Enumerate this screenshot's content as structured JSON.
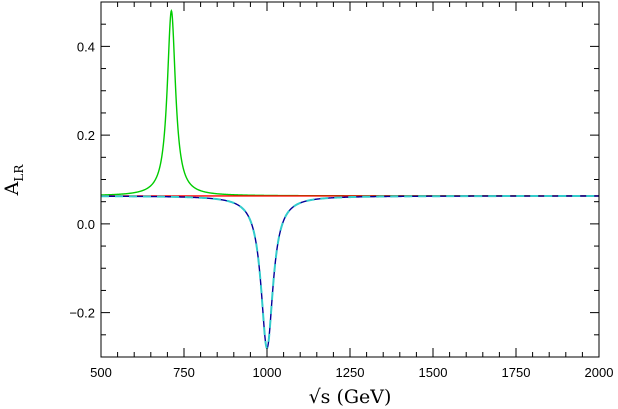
{
  "chart_data": {
    "type": "line",
    "xlabel": "√s (GeV)",
    "ylabel_main": "A",
    "ylabel_sub": "LR",
    "xlim": [
      500,
      2000
    ],
    "ylim": [
      -0.3,
      0.5
    ],
    "x_ticks": [
      500,
      750,
      1000,
      1250,
      1500,
      1750,
      2000
    ],
    "x_tick_labels": [
      "500",
      "750",
      "1000",
      "1250",
      "1500",
      "1750",
      "2000"
    ],
    "y_ticks": [
      -0.2,
      0.0,
      0.2,
      0.4
    ],
    "y_tick_labels": [
      "−0.2",
      "0.0",
      "0.2",
      "0.4"
    ],
    "grid": false,
    "series": [
      {
        "color": "#00cc00",
        "style": "solid",
        "baseline": 0.063,
        "peak_x": 712,
        "peak_y": 0.48,
        "half_width": 15
      },
      {
        "color": "#ff0000",
        "style": "solid",
        "baseline": 0.063
      },
      {
        "color": "#000099",
        "style": "solid",
        "baseline": 0.063,
        "peak_x": 1000,
        "peak_y": -0.28,
        "half_width": 22
      },
      {
        "color": "#33cccc",
        "style": "dashed",
        "baseline": 0.063,
        "peak_x": 1000,
        "peak_y": -0.28,
        "half_width": 22
      }
    ]
  }
}
